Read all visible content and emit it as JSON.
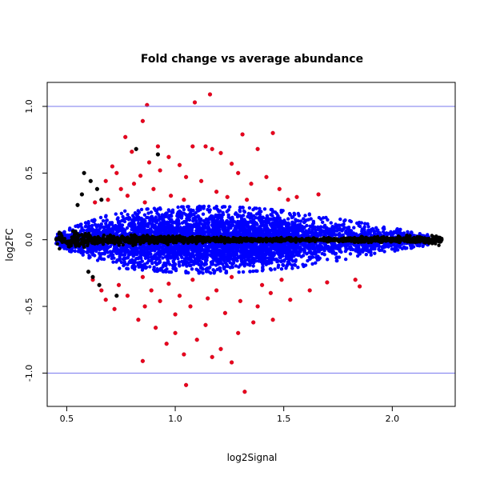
{
  "chart_data": {
    "type": "scatter",
    "title": "Fold change vs average abundance",
    "xlabel": "log2Signal",
    "ylabel": "log2FC",
    "xlim": [
      0.41,
      2.29
    ],
    "ylim": [
      -1.25,
      1.18
    ],
    "xticks": [
      "0.5",
      "1.0",
      "1.5",
      "2.0"
    ],
    "yticks": [
      "-1.0",
      "-0.5",
      "0.0",
      "0.5",
      "1.0"
    ],
    "hlines": [
      1.0,
      -1.0
    ],
    "colors": {
      "hline": "#7777ee",
      "blue_points": "#0000ff",
      "red_points": "#e8001c",
      "black_points": "#000000"
    },
    "series": [
      {
        "color": "red",
        "points": [
          [
            0.87,
            1.01
          ],
          [
            1.09,
            1.03
          ],
          [
            1.16,
            1.09
          ],
          [
            0.85,
            0.89
          ],
          [
            1.31,
            0.79
          ],
          [
            1.45,
            0.8
          ],
          [
            0.77,
            0.77
          ],
          [
            0.92,
            0.7
          ],
          [
            1.08,
            0.7
          ],
          [
            1.14,
            0.7
          ],
          [
            1.17,
            0.68
          ],
          [
            1.21,
            0.65
          ],
          [
            0.8,
            0.66
          ],
          [
            0.97,
            0.62
          ],
          [
            1.38,
            0.68
          ],
          [
            0.71,
            0.55
          ],
          [
            0.88,
            0.58
          ],
          [
            1.02,
            0.56
          ],
          [
            1.26,
            0.57
          ],
          [
            0.73,
            0.5
          ],
          [
            0.84,
            0.48
          ],
          [
            0.93,
            0.52
          ],
          [
            1.05,
            0.47
          ],
          [
            1.29,
            0.5
          ],
          [
            1.42,
            0.47
          ],
          [
            0.68,
            0.44
          ],
          [
            0.81,
            0.42
          ],
          [
            1.12,
            0.44
          ],
          [
            1.35,
            0.42
          ],
          [
            0.75,
            0.38
          ],
          [
            0.9,
            0.38
          ],
          [
            1.19,
            0.36
          ],
          [
            1.48,
            0.38
          ],
          [
            0.78,
            0.33
          ],
          [
            0.98,
            0.33
          ],
          [
            1.24,
            0.32
          ],
          [
            1.56,
            0.32
          ],
          [
            1.66,
            0.34
          ],
          [
            0.69,
            0.3
          ],
          [
            1.04,
            0.3
          ],
          [
            1.52,
            0.3
          ],
          [
            0.63,
            0.28
          ],
          [
            0.86,
            0.28
          ],
          [
            1.33,
            0.3
          ],
          [
            1.05,
            -1.09
          ],
          [
            1.32,
            -1.14
          ],
          [
            0.85,
            -0.91
          ],
          [
            1.26,
            -0.92
          ],
          [
            1.04,
            -0.86
          ],
          [
            1.17,
            -0.88
          ],
          [
            1.21,
            -0.82
          ],
          [
            0.96,
            -0.78
          ],
          [
            1.1,
            -0.75
          ],
          [
            1.0,
            -0.7
          ],
          [
            1.29,
            -0.7
          ],
          [
            0.91,
            -0.66
          ],
          [
            1.14,
            -0.64
          ],
          [
            1.36,
            -0.62
          ],
          [
            1.45,
            -0.6
          ],
          [
            0.83,
            -0.6
          ],
          [
            1.0,
            -0.56
          ],
          [
            1.23,
            -0.55
          ],
          [
            0.72,
            -0.52
          ],
          [
            0.86,
            -0.5
          ],
          [
            1.07,
            -0.5
          ],
          [
            1.38,
            -0.5
          ],
          [
            0.68,
            -0.45
          ],
          [
            0.93,
            -0.46
          ],
          [
            1.15,
            -0.44
          ],
          [
            1.3,
            -0.46
          ],
          [
            1.53,
            -0.45
          ],
          [
            0.78,
            -0.42
          ],
          [
            1.02,
            -0.42
          ],
          [
            1.44,
            -0.4
          ],
          [
            0.66,
            -0.38
          ],
          [
            0.89,
            -0.38
          ],
          [
            1.19,
            -0.38
          ],
          [
            1.62,
            -0.38
          ],
          [
            0.74,
            -0.34
          ],
          [
            0.97,
            -0.33
          ],
          [
            1.4,
            -0.34
          ],
          [
            1.83,
            -0.3
          ],
          [
            1.85,
            -0.35
          ],
          [
            0.62,
            -0.3
          ],
          [
            1.08,
            -0.3
          ],
          [
            1.49,
            -0.3
          ],
          [
            1.7,
            -0.32
          ],
          [
            0.85,
            -0.28
          ],
          [
            1.26,
            -0.28
          ]
        ]
      },
      {
        "color": "black",
        "points": [
          [
            0.82,
            0.68
          ],
          [
            0.92,
            0.64
          ],
          [
            0.58,
            0.5
          ],
          [
            0.61,
            0.44
          ],
          [
            0.64,
            0.38
          ],
          [
            0.57,
            0.34
          ],
          [
            0.66,
            0.3
          ],
          [
            0.55,
            0.26
          ],
          [
            0.62,
            -0.28
          ],
          [
            0.65,
            -0.34
          ],
          [
            0.73,
            -0.42
          ],
          [
            0.6,
            -0.24
          ]
        ]
      }
    ]
  }
}
